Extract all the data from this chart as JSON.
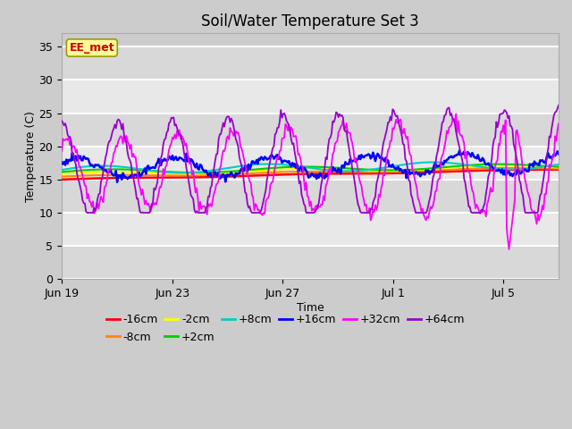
{
  "title": "Soil/Water Temperature Set 3",
  "xlabel": "Time",
  "ylabel": "Temperature (C)",
  "ylim": [
    0,
    37
  ],
  "background_color": "#cccccc",
  "plot_bg_color": "#e0e0e0",
  "legend_entries": [
    "-16cm",
    "-8cm",
    "-2cm",
    "+2cm",
    "+8cm",
    "+16cm",
    "+32cm",
    "+64cm"
  ],
  "legend_colors": [
    "#ff0000",
    "#ff8800",
    "#ffff00",
    "#00cc00",
    "#00cccc",
    "#0000ff",
    "#ff00ff",
    "#9900cc"
  ],
  "annotation_text": "EE_met",
  "annotation_bg": "#ffff99",
  "annotation_border": "#999900",
  "annotation_text_color": "#cc0000",
  "yticks": [
    0,
    5,
    10,
    15,
    20,
    25,
    30,
    35
  ],
  "grid_color": "#ffffff",
  "title_fontsize": 12,
  "axis_label_fontsize": 9,
  "tick_fontsize": 9,
  "legend_fontsize": 9,
  "n_days": 18,
  "pts_per_day": 24,
  "xtick_positions": [
    0,
    4,
    8,
    12,
    16
  ],
  "xtick_labels": [
    "Jun 19",
    "Jun 23",
    "Jun 27",
    "Jul 1",
    "Jul 5"
  ]
}
